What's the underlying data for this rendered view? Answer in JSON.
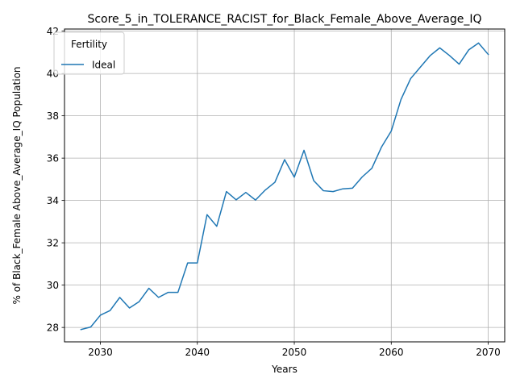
{
  "chart_data": {
    "type": "line",
    "title": "Score_5_in_TOLERANCE_RACIST_for_Black_Female_Above_Average_IQ",
    "xlabel": "Years",
    "ylabel": "% of Black_Female Above_Average_IQ Population",
    "xlim": [
      2026.3,
      2071.7
    ],
    "ylim": [
      27.32,
      42.1
    ],
    "xticks": [
      2030,
      2040,
      2050,
      2060,
      2070
    ],
    "yticks": [
      28,
      30,
      32,
      34,
      36,
      38,
      40,
      42
    ],
    "grid": true,
    "legend": {
      "title": "Fertility",
      "location": "top-left"
    },
    "series": [
      {
        "name": "Ideal",
        "color": "#1f77b4",
        "x": [
          2028,
          2029,
          2030,
          2031,
          2032,
          2033,
          2034,
          2035,
          2036,
          2037,
          2038,
          2039,
          2040,
          2041,
          2042,
          2043,
          2044,
          2045,
          2046,
          2047,
          2048,
          2049,
          2050,
          2051,
          2052,
          2053,
          2054,
          2055,
          2056,
          2057,
          2058,
          2059,
          2060,
          2061,
          2062,
          2063,
          2064,
          2065,
          2066,
          2067,
          2068,
          2069,
          2070
        ],
        "values": [
          27.9,
          28.02,
          28.58,
          28.8,
          29.42,
          28.92,
          29.22,
          29.85,
          29.42,
          29.66,
          29.66,
          31.05,
          31.05,
          33.33,
          32.78,
          34.42,
          34.03,
          34.38,
          34.02,
          34.49,
          34.86,
          35.93,
          35.1,
          36.37,
          34.94,
          34.46,
          34.42,
          34.55,
          34.58,
          35.11,
          35.52,
          36.53,
          37.28,
          38.77,
          39.76,
          40.3,
          40.84,
          41.21,
          40.85,
          40.44,
          41.12,
          41.44,
          40.9
        ]
      }
    ]
  }
}
